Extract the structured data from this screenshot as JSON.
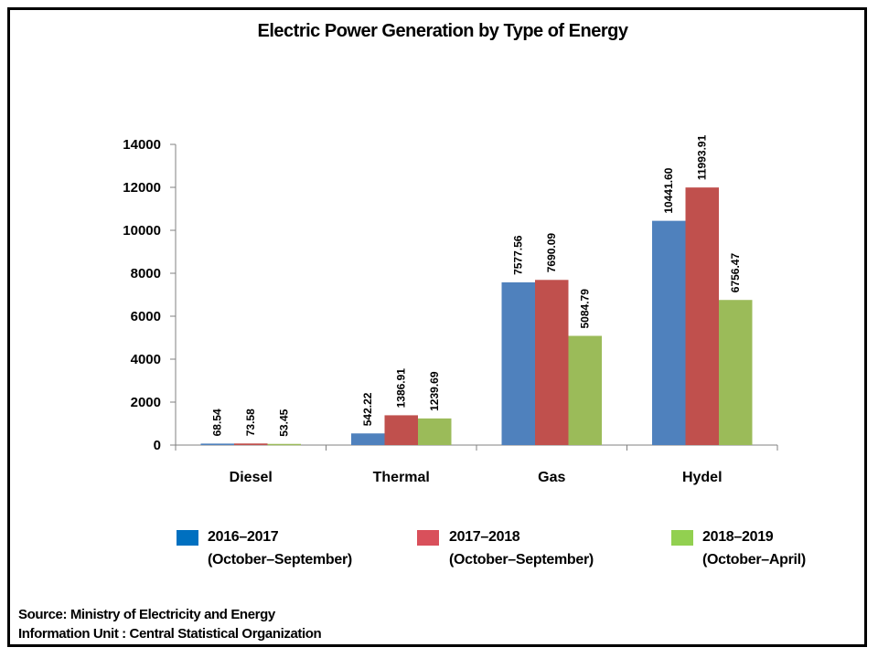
{
  "chart_data": {
    "type": "bar",
    "title": "Electric Power Generation by Type of Energy",
    "categories": [
      "Diesel",
      "Thermal",
      "Gas",
      "Hydel"
    ],
    "series": [
      {
        "name": "2016–2017",
        "period": "(October–September)",
        "color": "#4f81bd",
        "legend_color": "#0070c0",
        "values": [
          68.54,
          542.22,
          7577.56,
          10441.6
        ],
        "labels": [
          "68.54",
          "542.22",
          "7577.56",
          "10441.60"
        ]
      },
      {
        "name": "2017–2018",
        "period": "(October–September)",
        "color": "#c0504d",
        "legend_color": "#d9505b",
        "values": [
          73.58,
          1386.91,
          7690.09,
          11993.91
        ],
        "labels": [
          "73.58",
          "1386.91",
          "7690.09",
          "11993.91"
        ]
      },
      {
        "name": "2018–2019",
        "period": "(October–April)",
        "color": "#9bbb59",
        "legend_color": "#92d050",
        "values": [
          53.45,
          1239.69,
          5084.79,
          6756.47
        ],
        "labels": [
          "53.45",
          "1239.69",
          "5084.79",
          "6756.47"
        ]
      }
    ],
    "yticks": [
      0,
      2000,
      4000,
      6000,
      8000,
      10000,
      12000,
      14000
    ],
    "ylim": [
      0,
      14000
    ],
    "xlabel": "",
    "ylabel": "",
    "grid": false,
    "legend_position": "bottom"
  },
  "source": {
    "line1": "Source: Ministry of Electricity and Energy",
    "line2": "Information Unit : Central Statistical Organization"
  }
}
